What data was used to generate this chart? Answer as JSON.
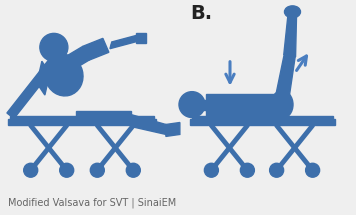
{
  "bg_color": "#efefef",
  "figure_bg": "#efefef",
  "blue_body": "#3d6fab",
  "blue_outline": "#2d5a8a",
  "blue_arrow": "#4a7ec0",
  "caption_text": "Modified Valsava for SVT | SinaiEM",
  "caption_color": "#666666",
  "caption_fontsize": 7.0,
  "label_B": "B.",
  "label_B_fontsize": 14,
  "label_B_color": "#222222"
}
